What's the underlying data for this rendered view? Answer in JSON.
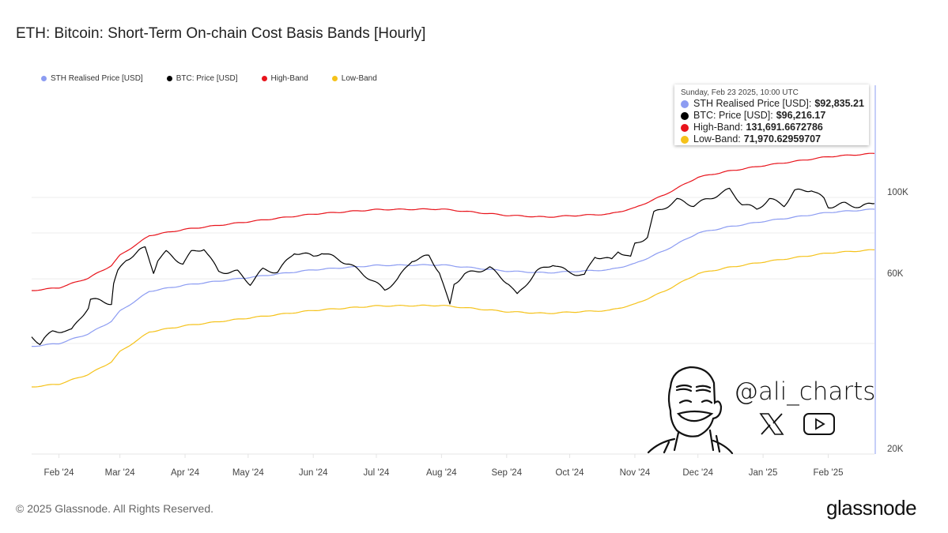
{
  "title": "ETH: Bitcoin: Short-Term On-chain Cost Basis Bands [Hourly]",
  "legend": [
    {
      "label": "STH Realised Price [USD]",
      "color": "#8c9cf2"
    },
    {
      "label": "BTC: Price [USD]",
      "color": "#000000"
    },
    {
      "label": "High-Band",
      "color": "#e8141c"
    },
    {
      "label": "Low-Band",
      "color": "#f5c21a"
    }
  ],
  "tooltip": {
    "date": "Sunday, Feb 23 2025, 10:00 UTC",
    "rows": [
      {
        "label": "STH Realised Price [USD]:",
        "value": "$92,835.21",
        "color": "#8c9cf2"
      },
      {
        "label": "BTC: Price [USD]:",
        "value": "$96,216.17",
        "color": "#000000"
      },
      {
        "label": "High-Band:",
        "value": "131,691.6672786",
        "color": "#e8141c"
      },
      {
        "label": "Low-Band:",
        "value": "71,970.62959707",
        "color": "#f5c21a"
      }
    ]
  },
  "watermark": {
    "handle": "@ali_charts",
    "icons": [
      "cartoon-face-icon",
      "x-logo-icon",
      "youtube-icon"
    ]
  },
  "footer": {
    "copyright": "© 2025 Glassnode. All Rights Reserved.",
    "logo": "glassnode"
  },
  "chart_data": {
    "type": "line",
    "title": "ETH: Bitcoin: Short-Term On-chain Cost Basis Bands [Hourly]",
    "y_scale": "log",
    "ylim": [
      20000,
      202000
    ],
    "xlim": [
      "2024-01-19",
      "2025-02-23"
    ],
    "y_ticks": [
      {
        "value": 20000,
        "label": "20K"
      },
      {
        "value": 60000,
        "label": "60K"
      },
      {
        "value": 100000,
        "label": "100K"
      }
    ],
    "y_grid": [
      20000,
      40000,
      60000,
      80000,
      100000
    ],
    "x_ticks": [
      {
        "date": "2024-02-01",
        "label": "Feb '24"
      },
      {
        "date": "2024-03-01",
        "label": "Mar '24"
      },
      {
        "date": "2024-04-01",
        "label": "Apr '24"
      },
      {
        "date": "2024-05-01",
        "label": "May '24"
      },
      {
        "date": "2024-06-01",
        "label": "Jun '24"
      },
      {
        "date": "2024-07-01",
        "label": "Jul '24"
      },
      {
        "date": "2024-08-01",
        "label": "Aug '24"
      },
      {
        "date": "2024-09-01",
        "label": "Sep '24"
      },
      {
        "date": "2024-10-01",
        "label": "Oct '24"
      },
      {
        "date": "2024-11-01",
        "label": "Nov '24"
      },
      {
        "date": "2024-12-01",
        "label": "Dec '24"
      },
      {
        "date": "2025-01-01",
        "label": "Jan '25"
      },
      {
        "date": "2025-02-01",
        "label": "Feb '25"
      }
    ],
    "grid": true,
    "legend_position": "top-left",
    "band_dates": [
      "2024-01-19",
      "2024-02-01",
      "2024-02-15",
      "2024-02-26",
      "2024-03-01",
      "2024-03-10",
      "2024-03-15",
      "2024-04-01",
      "2024-05-01",
      "2024-06-01",
      "2024-07-01",
      "2024-08-01",
      "2024-09-01",
      "2024-09-20",
      "2024-10-01",
      "2024-10-20",
      "2024-11-01",
      "2024-11-15",
      "2024-12-01",
      "2024-12-15",
      "2025-01-01",
      "2025-01-20",
      "2025-02-01",
      "2025-02-23"
    ],
    "series": [
      {
        "name": "STH Realised Price [USD]",
        "color": "#8c9cf2",
        "values": [
          39300,
          40000,
          42500,
          46000,
          49000,
          53000,
          55500,
          57700,
          60500,
          63500,
          65300,
          65500,
          63000,
          62300,
          62800,
          63500,
          66000,
          71600,
          80000,
          83000,
          86000,
          89000,
          91000,
          92835
        ]
      },
      {
        "name": "High-Band",
        "color": "#e8141c",
        "values": [
          55750,
          56740,
          60290,
          65260,
          69510,
          75190,
          78730,
          81850,
          85830,
          90080,
          92640,
          92920,
          89370,
          88380,
          89090,
          90080,
          93630,
          101570,
          113490,
          117740,
          122000,
          126260,
          129090,
          131692
        ]
      },
      {
        "name": "Low-Band",
        "color": "#f5c21a",
        "values": [
          30470,
          31010,
          32950,
          35660,
          37990,
          41090,
          43030,
          44730,
          46910,
          49230,
          50630,
          50780,
          48840,
          48300,
          48690,
          49230,
          51170,
          55510,
          62020,
          64350,
          66680,
          69000,
          70550,
          71971
        ]
      }
    ],
    "btc": {
      "name": "BTC: Price [USD]",
      "color": "#000000",
      "points": [
        [
          "2024-01-19",
          41700
        ],
        [
          "2024-01-23",
          40100
        ],
        [
          "2024-01-25",
          41300
        ],
        [
          "2024-01-29",
          43000
        ],
        [
          "2024-02-03",
          43400
        ],
        [
          "2024-02-07",
          43400
        ],
        [
          "2024-02-11",
          46700
        ],
        [
          "2024-02-15",
          50300
        ],
        [
          "2024-02-16",
          52800
        ],
        [
          "2024-02-20",
          52300
        ],
        [
          "2024-02-26",
          51500
        ],
        [
          "2024-02-27",
          58200
        ],
        [
          "2024-02-29",
          62700
        ],
        [
          "2024-03-04",
          67500
        ],
        [
          "2024-03-10",
          71600
        ],
        [
          "2024-03-13",
          72700
        ],
        [
          "2024-03-17",
          62700
        ],
        [
          "2024-03-19",
          67500
        ],
        [
          "2024-03-23",
          70900
        ],
        [
          "2024-03-31",
          65900
        ],
        [
          "2024-04-04",
          70900
        ],
        [
          "2024-04-10",
          72700
        ],
        [
          "2024-04-17",
          62700
        ],
        [
          "2024-04-26",
          62700
        ],
        [
          "2024-05-02",
          58200
        ],
        [
          "2024-05-08",
          63600
        ],
        [
          "2024-05-15",
          62700
        ],
        [
          "2024-05-23",
          70900
        ],
        [
          "2024-06-01",
          69200
        ],
        [
          "2024-06-05",
          70900
        ],
        [
          "2024-06-18",
          65900
        ],
        [
          "2024-06-26",
          61200
        ],
        [
          "2024-07-05",
          56000
        ],
        [
          "2024-07-11",
          59700
        ],
        [
          "2024-07-18",
          67500
        ],
        [
          "2024-07-26",
          69200
        ],
        [
          "2024-07-31",
          62700
        ],
        [
          "2024-08-04",
          52800
        ],
        [
          "2024-08-05",
          50800
        ],
        [
          "2024-08-07",
          58200
        ],
        [
          "2024-08-12",
          61800
        ],
        [
          "2024-08-24",
          64300
        ],
        [
          "2024-09-02",
          58200
        ],
        [
          "2024-09-06",
          54100
        ],
        [
          "2024-09-15",
          62700
        ],
        [
          "2024-09-23",
          65900
        ],
        [
          "2024-09-30",
          62700
        ],
        [
          "2024-10-08",
          61200
        ],
        [
          "2024-10-13",
          69200
        ],
        [
          "2024-10-21",
          67500
        ],
        [
          "2024-10-24",
          71600
        ],
        [
          "2024-10-30",
          68500
        ],
        [
          "2024-11-01",
          74500
        ],
        [
          "2024-11-07",
          78200
        ],
        [
          "2024-11-10",
          90600
        ],
        [
          "2024-11-14",
          92900
        ],
        [
          "2024-11-21",
          98500
        ],
        [
          "2024-11-29",
          95200
        ],
        [
          "2024-12-12",
          102500
        ],
        [
          "2024-12-16",
          105000
        ],
        [
          "2024-12-22",
          96100
        ],
        [
          "2024-12-29",
          92900
        ],
        [
          "2025-01-04",
          99000
        ],
        [
          "2025-01-11",
          95200
        ],
        [
          "2025-01-16",
          104000
        ],
        [
          "2025-01-24",
          105000
        ],
        [
          "2025-01-30",
          99000
        ],
        [
          "2025-02-01",
          94300
        ],
        [
          "2025-02-09",
          96100
        ],
        [
          "2025-02-16",
          94300
        ],
        [
          "2025-02-23",
          96216
        ]
      ]
    }
  }
}
